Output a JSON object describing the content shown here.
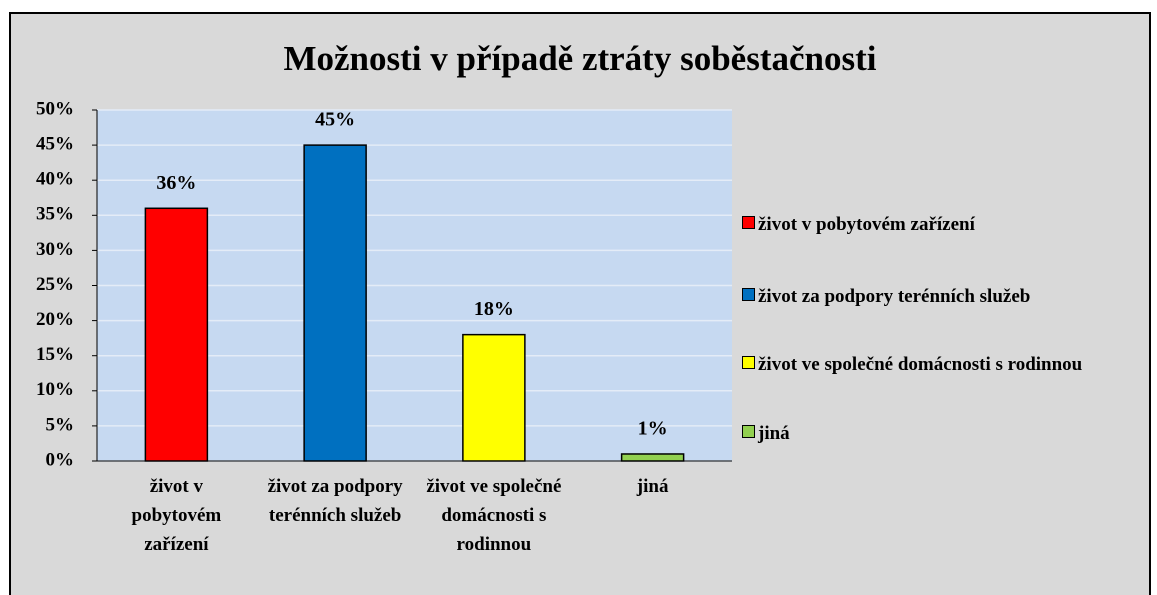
{
  "chart_data": {
    "type": "bar",
    "title": "Možnosti v případě ztráty soběstačnosti",
    "categories": [
      "život v pobytovém zařízení",
      "život za podpory terénních služeb",
      "život ve společné domácnosti s rodinnou",
      "jiná"
    ],
    "values": [
      36,
      45,
      18,
      1
    ],
    "value_labels": [
      "36%",
      "45%",
      "18%",
      "1%"
    ],
    "colors": [
      "#ff0000",
      "#0070c0",
      "#ffff00",
      "#92d050"
    ],
    "ylim": [
      0,
      50
    ],
    "yticks": [
      {
        "value": 0,
        "label": "0%"
      },
      {
        "value": 5,
        "label": "5%"
      },
      {
        "value": 10,
        "label": "10%"
      },
      {
        "value": 15,
        "label": "15%"
      },
      {
        "value": 20,
        "label": "20%"
      },
      {
        "value": 25,
        "label": "25%"
      },
      {
        "value": 30,
        "label": "30%"
      },
      {
        "value": 35,
        "label": "35%"
      },
      {
        "value": 40,
        "label": "40%"
      },
      {
        "value": 45,
        "label": "45%"
      },
      {
        "value": 50,
        "label": "50%"
      }
    ],
    "grid": true,
    "legend": "right"
  }
}
